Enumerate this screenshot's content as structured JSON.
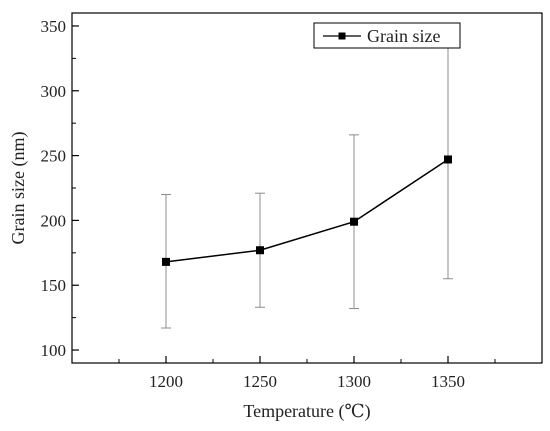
{
  "chart_data": {
    "type": "line",
    "xlabel": "Temperature (℃)",
    "ylabel": "Grain size (nm)",
    "x": [
      1200,
      1250,
      1300,
      1350
    ],
    "x_ticks": [
      "1200",
      "1250",
      "1300",
      "1350"
    ],
    "xlim": [
      1150,
      1400
    ],
    "ylim": [
      90,
      360
    ],
    "y_ticks": [
      "100",
      "150",
      "200",
      "250",
      "300",
      "350"
    ],
    "grid": false,
    "legend_position": "top-right",
    "series": [
      {
        "name": "Grain size",
        "color": "#000000",
        "marker": "square",
        "values": [
          168,
          177,
          199,
          247
        ],
        "error_low": [
          117,
          133,
          132,
          155
        ],
        "error_high": [
          220,
          221,
          266,
          339
        ]
      }
    ],
    "error_bar_color": "#8c8c8c"
  }
}
